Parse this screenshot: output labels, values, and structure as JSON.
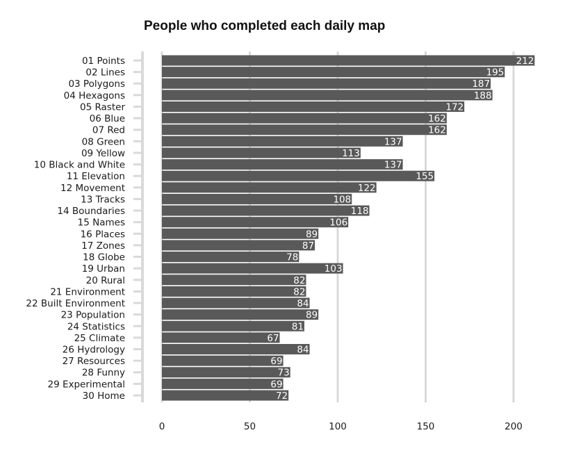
{
  "chart_data": {
    "type": "bar",
    "orientation": "horizontal",
    "title": "People who completed each daily map",
    "xlabel": "",
    "ylabel": "",
    "xlim": [
      0,
      215
    ],
    "x_ticks": [
      0,
      50,
      100,
      150,
      200
    ],
    "grid": "vertical major gridlines",
    "bar_color": "#595959",
    "grid_color": "#d9d9d9",
    "value_label_color": "#ffffff",
    "categories": [
      "01 Points",
      "02 Lines",
      "03 Polygons",
      "04 Hexagons",
      "05 Raster",
      "06 Blue",
      "07 Red",
      "08 Green",
      "09 Yellow",
      "10 Black and White",
      "11 Elevation",
      "12 Movement",
      "13 Tracks",
      "14 Boundaries",
      "15 Names",
      "16 Places",
      "17 Zones",
      "18 Globe",
      "19 Urban",
      "20 Rural",
      "21 Environment",
      "22 Built Environment",
      "23 Population",
      "24 Statistics",
      "25 Climate",
      "26 Hydrology",
      "27 Resources",
      "28 Funny",
      "29 Experimental",
      "30 Home"
    ],
    "values": [
      212,
      195,
      187,
      188,
      172,
      162,
      162,
      137,
      113,
      137,
      155,
      122,
      108,
      118,
      106,
      89,
      87,
      78,
      103,
      82,
      82,
      84,
      89,
      81,
      67,
      84,
      69,
      73,
      69,
      72
    ]
  }
}
